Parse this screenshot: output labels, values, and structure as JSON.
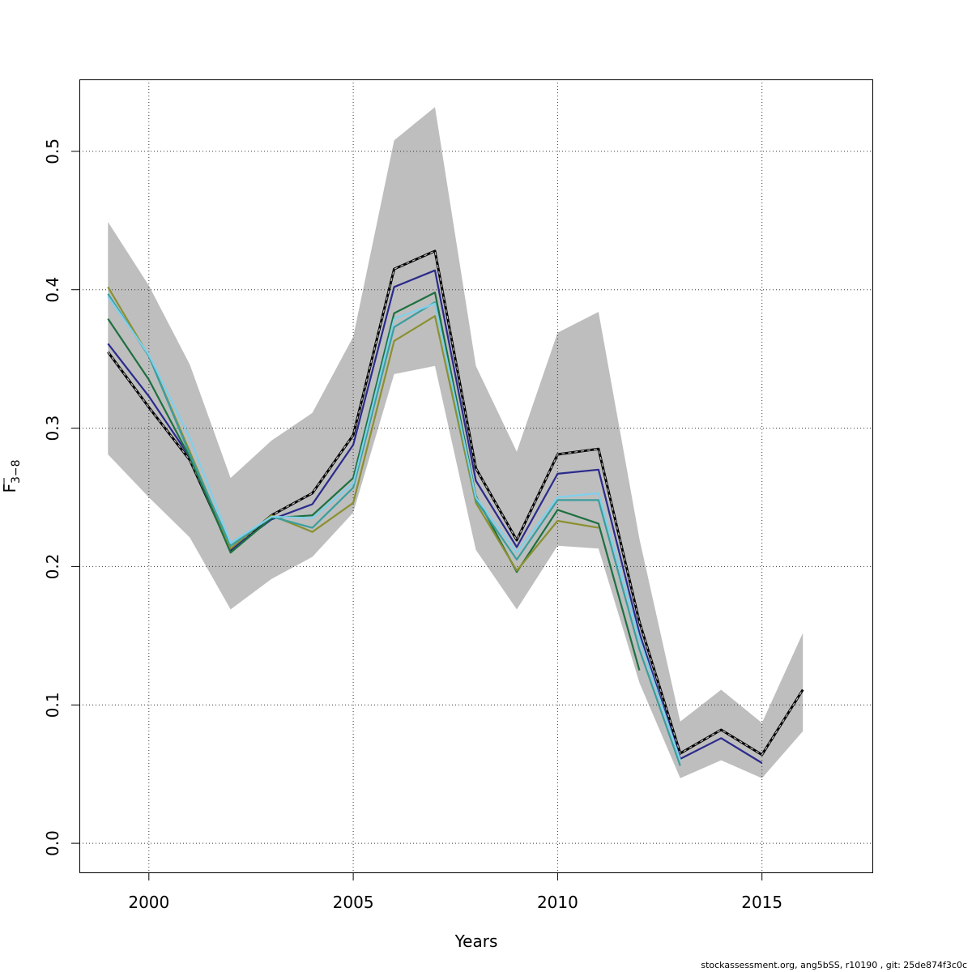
{
  "chart_data": {
    "type": "line",
    "xlabel": "Years",
    "ylabel_main": "F",
    "ylabel_sub": "3−8",
    "xlim": [
      1998.3,
      2017.7
    ],
    "ylim": [
      -0.021,
      0.552
    ],
    "xticks": [
      2000,
      2005,
      2010,
      2015
    ],
    "yticks": [
      0.0,
      0.1,
      0.2,
      0.3,
      0.4,
      0.5
    ],
    "ytick_labels": [
      "0.0",
      "0.1",
      "0.2",
      "0.3",
      "0.4",
      "0.5"
    ],
    "grid": true,
    "band": {
      "x": [
        1999,
        2000,
        2001,
        2002,
        2003,
        2004,
        2005,
        2006,
        2007,
        2008,
        2009,
        2010,
        2011,
        2012,
        2013,
        2014,
        2015,
        2016
      ],
      "upper": [
        0.449,
        0.403,
        0.346,
        0.264,
        0.291,
        0.311,
        0.366,
        0.508,
        0.532,
        0.345,
        0.283,
        0.369,
        0.384,
        0.22,
        0.088,
        0.111,
        0.087,
        0.152
      ],
      "lower": [
        0.281,
        0.25,
        0.221,
        0.169,
        0.191,
        0.207,
        0.239,
        0.339,
        0.345,
        0.212,
        0.169,
        0.215,
        0.213,
        0.116,
        0.047,
        0.06,
        0.047,
        0.081
      ],
      "color": "#bebebe"
    },
    "series": [
      {
        "color": "#2b2b2b",
        "dashed": true,
        "x": [
          1999,
          2000,
          2001,
          2002,
          2003,
          2004,
          2005,
          2006,
          2007,
          2008,
          2009,
          2010,
          2011,
          2012,
          2013,
          2014,
          2015,
          2016
        ],
        "values": [
          0.355,
          0.315,
          0.277,
          0.212,
          0.237,
          0.253,
          0.295,
          0.415,
          0.428,
          0.271,
          0.219,
          0.281,
          0.285,
          0.16,
          0.065,
          0.082,
          0.064,
          0.111
        ]
      },
      {
        "color": "#2a2a8c",
        "x": [
          1999,
          2000,
          2001,
          2002,
          2003,
          2004,
          2005,
          2006,
          2007,
          2008,
          2009,
          2010,
          2011,
          2012,
          2013,
          2014,
          2015
        ],
        "values": [
          0.361,
          0.323,
          0.279,
          0.212,
          0.234,
          0.245,
          0.288,
          0.402,
          0.414,
          0.262,
          0.214,
          0.267,
          0.27,
          0.152,
          0.061,
          0.076,
          0.058
        ]
      },
      {
        "color": "#1d7040",
        "x": [
          1999,
          2000,
          2001,
          2002,
          2003,
          2004,
          2005,
          2006,
          2007,
          2008,
          2009,
          2010,
          2011,
          2012
        ],
        "values": [
          0.379,
          0.335,
          0.279,
          0.21,
          0.235,
          0.237,
          0.264,
          0.383,
          0.398,
          0.251,
          0.196,
          0.241,
          0.231,
          0.125
        ]
      },
      {
        "color": "#8b9030",
        "x": [
          1999,
          2000,
          2001,
          2002,
          2003,
          2004,
          2005,
          2006,
          2007,
          2008,
          2009,
          2010,
          2011
        ],
        "values": [
          0.402,
          0.352,
          0.283,
          0.213,
          0.237,
          0.225,
          0.246,
          0.363,
          0.381,
          0.246,
          0.197,
          0.233,
          0.228
        ]
      },
      {
        "color": "#3a9e9e",
        "x": [
          1999,
          2000,
          2001,
          2002,
          2003,
          2004,
          2005,
          2006,
          2007,
          2008,
          2009,
          2010,
          2011,
          2012,
          2013
        ],
        "values": [
          0.397,
          0.352,
          0.281,
          0.215,
          0.236,
          0.228,
          0.257,
          0.373,
          0.391,
          0.248,
          0.205,
          0.248,
          0.248,
          0.14,
          0.056
        ]
      },
      {
        "color": "#7fd0ec",
        "x": [
          1999,
          2000,
          2001,
          2002,
          2003,
          2004,
          2005,
          2006,
          2007,
          2008,
          2009,
          2010,
          2011,
          2012,
          2013
        ],
        "values": [
          0.395,
          0.353,
          0.293,
          0.217,
          0.236,
          0.235,
          0.26,
          0.379,
          0.39,
          0.25,
          0.21,
          0.25,
          0.253,
          0.148,
          0.06
        ]
      }
    ]
  },
  "footer": "stockassessment.org, ang5bSS, r10190 , git: 25de874f3c0c"
}
